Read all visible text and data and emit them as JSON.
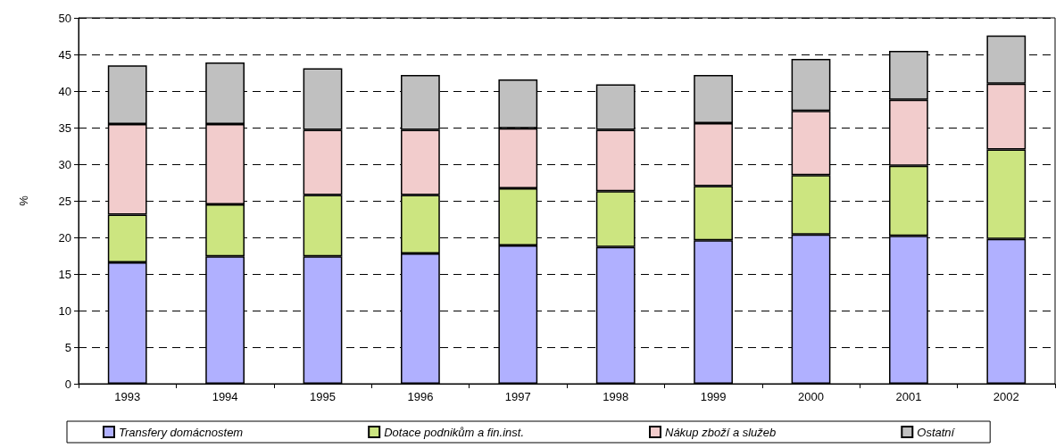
{
  "chart_data": {
    "type": "bar",
    "stacked": true,
    "ylabel": "%",
    "categories": [
      "1993",
      "1994",
      "1995",
      "1996",
      "1997",
      "1998",
      "1999",
      "2000",
      "2001",
      "2002"
    ],
    "series": [
      {
        "name": "Transfery domácnostem",
        "color": "#b0b0ff",
        "values": [
          16.6,
          17.4,
          17.4,
          17.8,
          18.9,
          18.7,
          19.6,
          20.4,
          20.2,
          19.8
        ]
      },
      {
        "name": "Dotace podnikům a fin.inst.",
        "color": "#cce580",
        "values": [
          6.5,
          7.1,
          8.4,
          8.0,
          7.8,
          7.6,
          7.4,
          8.1,
          9.6,
          12.2
        ]
      },
      {
        "name": "Nákup zboží a služeb",
        "color": "#f2cccc",
        "values": [
          12.4,
          11.0,
          8.9,
          8.9,
          8.2,
          8.4,
          8.6,
          8.8,
          9.0,
          9.0
        ]
      },
      {
        "name": "Ostatní",
        "color": "#c0c0c0",
        "values": [
          8.0,
          8.4,
          8.4,
          7.5,
          6.7,
          6.2,
          6.6,
          7.1,
          6.7,
          6.6
        ]
      }
    ],
    "ylim": [
      0,
      50
    ],
    "yticks": [
      0,
      5,
      10,
      15,
      20,
      25,
      30,
      35,
      40,
      45,
      50
    ],
    "grid": "y",
    "legend": "bottom"
  }
}
